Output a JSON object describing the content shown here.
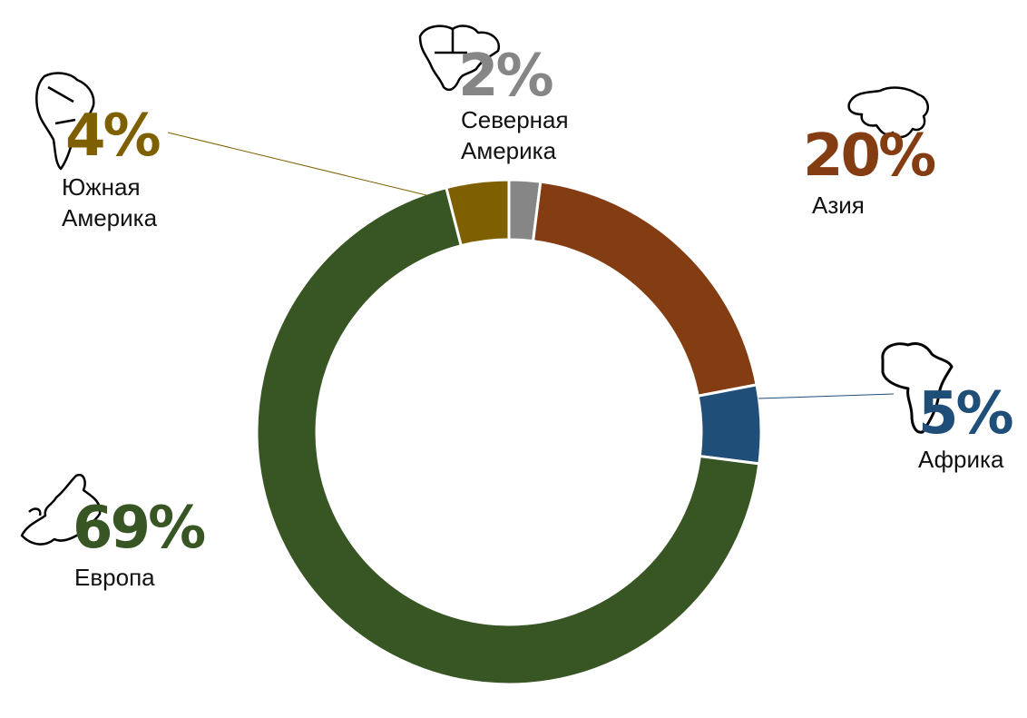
{
  "chart_data": {
    "type": "pie",
    "donut": true,
    "legend": "none",
    "slices": [
      {
        "label": "Северная Америка",
        "value": 2,
        "display": "2%",
        "color": "#868686",
        "icon": "north-america-map-icon"
      },
      {
        "label": "Азия",
        "value": 20,
        "display": "20%",
        "color": "#843C12",
        "icon": "asia-map-icon"
      },
      {
        "label": "Африка",
        "value": 5,
        "display": "5%",
        "color": "#1F4E79",
        "icon": "africa-map-icon"
      },
      {
        "label": "Европа",
        "value": 69,
        "display": "69%",
        "color": "#375623",
        "icon": "europe-map-icon"
      },
      {
        "label": "Южная Америка",
        "value": 4,
        "display": "4%",
        "color": "#7F6000",
        "icon": "south-america-map-icon"
      }
    ]
  }
}
